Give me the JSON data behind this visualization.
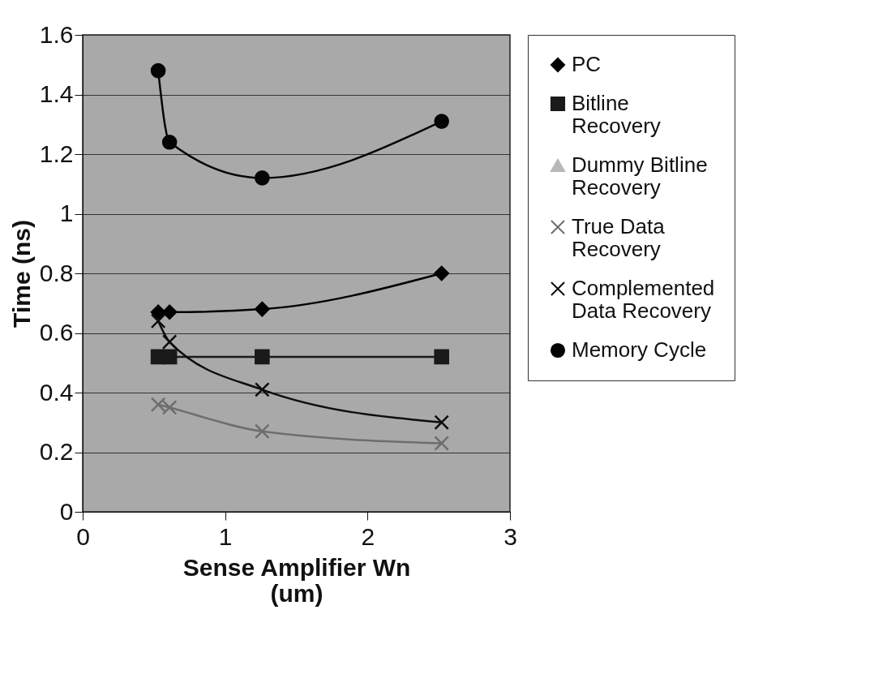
{
  "chart_data": {
    "type": "line",
    "xlabel": "Sense Amplifier Wn (um)",
    "ylabel": "Time (ns)",
    "xlim": [
      0,
      3
    ],
    "xticks": [
      0,
      1,
      2,
      3
    ],
    "ylim": [
      0,
      1.6
    ],
    "yticks": [
      0,
      0.2,
      0.4,
      0.6,
      0.8,
      1,
      1.2,
      1.4,
      1.6
    ],
    "grid": "y",
    "legend": "right",
    "x": [
      0.53,
      0.61,
      1.26,
      2.52
    ],
    "series": [
      {
        "name": "PC",
        "color": "#000000",
        "marker": "diamond",
        "values": [
          0.67,
          0.67,
          0.68,
          0.8
        ]
      },
      {
        "name": "Bitline Recovery",
        "color": "#1a1a1a",
        "marker": "square",
        "values": [
          0.52,
          0.52,
          0.52,
          0.52
        ]
      },
      {
        "name": "Dummy Bitline Recovery",
        "color": "#b8b8b8",
        "marker": "triangle",
        "values": [
          null,
          null,
          null,
          null
        ]
      },
      {
        "name": "True Data Recovery",
        "color": "#6e6e6e",
        "marker": "cross",
        "values": [
          0.36,
          0.35,
          0.27,
          0.23
        ]
      },
      {
        "name": "Complemented Data Recovery",
        "color": "#0d0d0d",
        "marker": "cross",
        "values": [
          0.64,
          0.57,
          0.41,
          0.3
        ]
      },
      {
        "name": "Memory Cycle",
        "color": "#050505",
        "marker": "circle",
        "values": [
          1.48,
          1.24,
          1.12,
          1.31
        ]
      }
    ]
  }
}
